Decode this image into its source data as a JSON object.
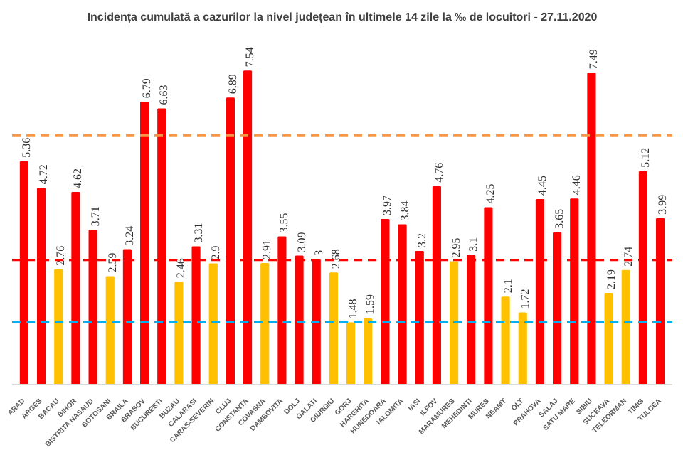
{
  "chart_data": {
    "type": "bar",
    "title": "Incidența cumulată a cazurilor la nivel județean în ultimele 14 zile la ‰ de locuitori - 27.11.2020",
    "categories": [
      "ARAD",
      "ARGES",
      "BACAU",
      "BIHOR",
      "BISTRITA NASAUD",
      "BOTOSANI",
      "BRAILA",
      "BRASOV",
      "BUCURESTI",
      "BUZAU",
      "CALARASI",
      "CARAS-SEVERIN",
      "CLUJ",
      "CONSTANTA",
      "COVASNA",
      "DAMBOVITA",
      "DOLJ",
      "GALATI",
      "GIURGIU",
      "GORJ",
      "HARGHITA",
      "HUNEDOARA",
      "IALOMITA",
      "IASI",
      "ILFOV",
      "MARAMURES",
      "MEHEDINTI",
      "MURES",
      "NEAMT",
      "OLT",
      "PRAHOVA",
      "SALAJ",
      "SATU MARE",
      "SIBIU",
      "SUCEAVA",
      "TELEORMAN",
      "TIMIS",
      "TULCEA"
    ],
    "values": [
      5.36,
      4.72,
      2.76,
      4.62,
      3.71,
      2.59,
      3.24,
      6.79,
      6.63,
      2.46,
      3.31,
      2.9,
      6.89,
      7.54,
      2.91,
      3.55,
      3.09,
      3,
      2.68,
      1.48,
      1.59,
      3.97,
      3.84,
      3.2,
      4.76,
      2.95,
      3.1,
      4.25,
      2.1,
      1.72,
      4.45,
      3.65,
      4.46,
      7.49,
      2.19,
      2.74,
      5.12,
      3.99
    ],
    "colors": [
      "#ff0000",
      "#ff0000",
      "#ffc000",
      "#ff0000",
      "#ff0000",
      "#ffc000",
      "#ff0000",
      "#ff0000",
      "#ff0000",
      "#ffc000",
      "#ff0000",
      "#ffc000",
      "#ff0000",
      "#ff0000",
      "#ffc000",
      "#ff0000",
      "#ff0000",
      "#ff0000",
      "#ffc000",
      "#ffc000",
      "#ffc000",
      "#ff0000",
      "#ff0000",
      "#ff0000",
      "#ff0000",
      "#ffc000",
      "#ff0000",
      "#ff0000",
      "#ffc000",
      "#ffc000",
      "#ff0000",
      "#ff0000",
      "#ff0000",
      "#ff0000",
      "#ffc000",
      "#ffc000",
      "#ff0000",
      "#ff0000"
    ],
    "data_labels": true,
    "ref_lines": [
      {
        "axis": "y",
        "value": 6,
        "label": null,
        "color": "#f79646",
        "line_style": "dashed"
      },
      {
        "axis": "y",
        "value": 3,
        "label": null,
        "color": "#ff0000",
        "line_style": "dashed"
      },
      {
        "axis": "y",
        "value": 1.5,
        "label": null,
        "color": "#00b0f0",
        "line_style": "dashed"
      }
    ],
    "grid": false
  }
}
